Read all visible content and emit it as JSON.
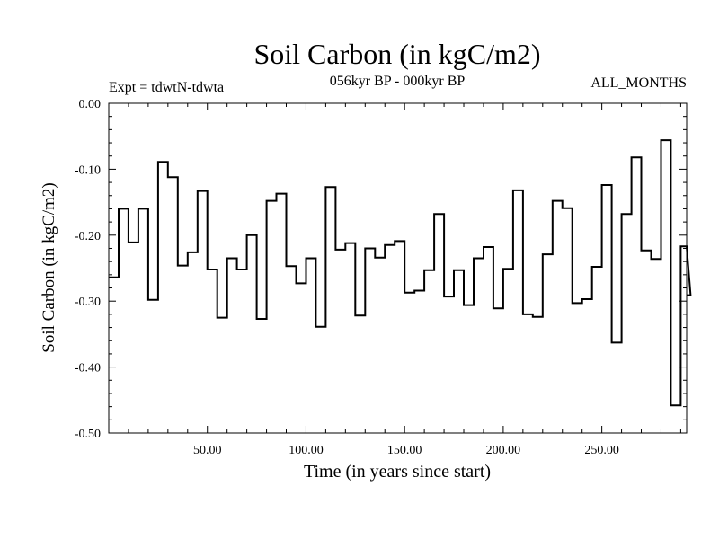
{
  "chart_data": {
    "type": "line",
    "style": "step",
    "title": "Soil Carbon (in kgC/m2)",
    "subtitle": "056kyr BP - 000kyr BP",
    "left_annotation": "Expt = tdwtN-tdwta",
    "right_annotation": "ALL_MONTHS",
    "xlabel": "Time (in years since start)",
    "ylabel": "Soil Carbon (in kgC/m2)",
    "xlim": [
      0,
      293
    ],
    "ylim": [
      -0.5,
      0.0
    ],
    "xticks": [
      {
        "value": 50,
        "label": "50.00"
      },
      {
        "value": 100,
        "label": "100.00"
      },
      {
        "value": 150,
        "label": "150.00"
      },
      {
        "value": 200,
        "label": "200.00"
      },
      {
        "value": 250,
        "label": "250.00"
      }
    ],
    "yticks": [
      {
        "value": 0.0,
        "label": "0.00"
      },
      {
        "value": -0.1,
        "label": "-0.10"
      },
      {
        "value": -0.2,
        "label": "-0.20"
      },
      {
        "value": -0.3,
        "label": "-0.30"
      },
      {
        "value": -0.4,
        "label": "-0.40"
      },
      {
        "value": -0.5,
        "label": "-0.50"
      }
    ],
    "step_width": 5,
    "values": [
      -0.264,
      -0.16,
      -0.211,
      -0.16,
      -0.298,
      -0.089,
      -0.112,
      -0.246,
      -0.226,
      -0.133,
      -0.252,
      -0.325,
      -0.235,
      -0.252,
      -0.2,
      -0.327,
      -0.148,
      -0.137,
      -0.247,
      -0.273,
      -0.235,
      -0.339,
      -0.127,
      -0.222,
      -0.212,
      -0.322,
      -0.22,
      -0.234,
      -0.215,
      -0.209,
      -0.287,
      -0.284,
      -0.253,
      -0.168,
      -0.293,
      -0.253,
      -0.306,
      -0.235,
      -0.218,
      -0.311,
      -0.251,
      -0.132,
      -0.32,
      -0.324,
      -0.229,
      -0.148,
      -0.159,
      -0.303,
      -0.297,
      -0.248,
      -0.124,
      -0.363,
      -0.168,
      -0.082,
      -0.223,
      -0.236,
      -0.056,
      -0.458,
      -0.217,
      -0.291
    ]
  }
}
